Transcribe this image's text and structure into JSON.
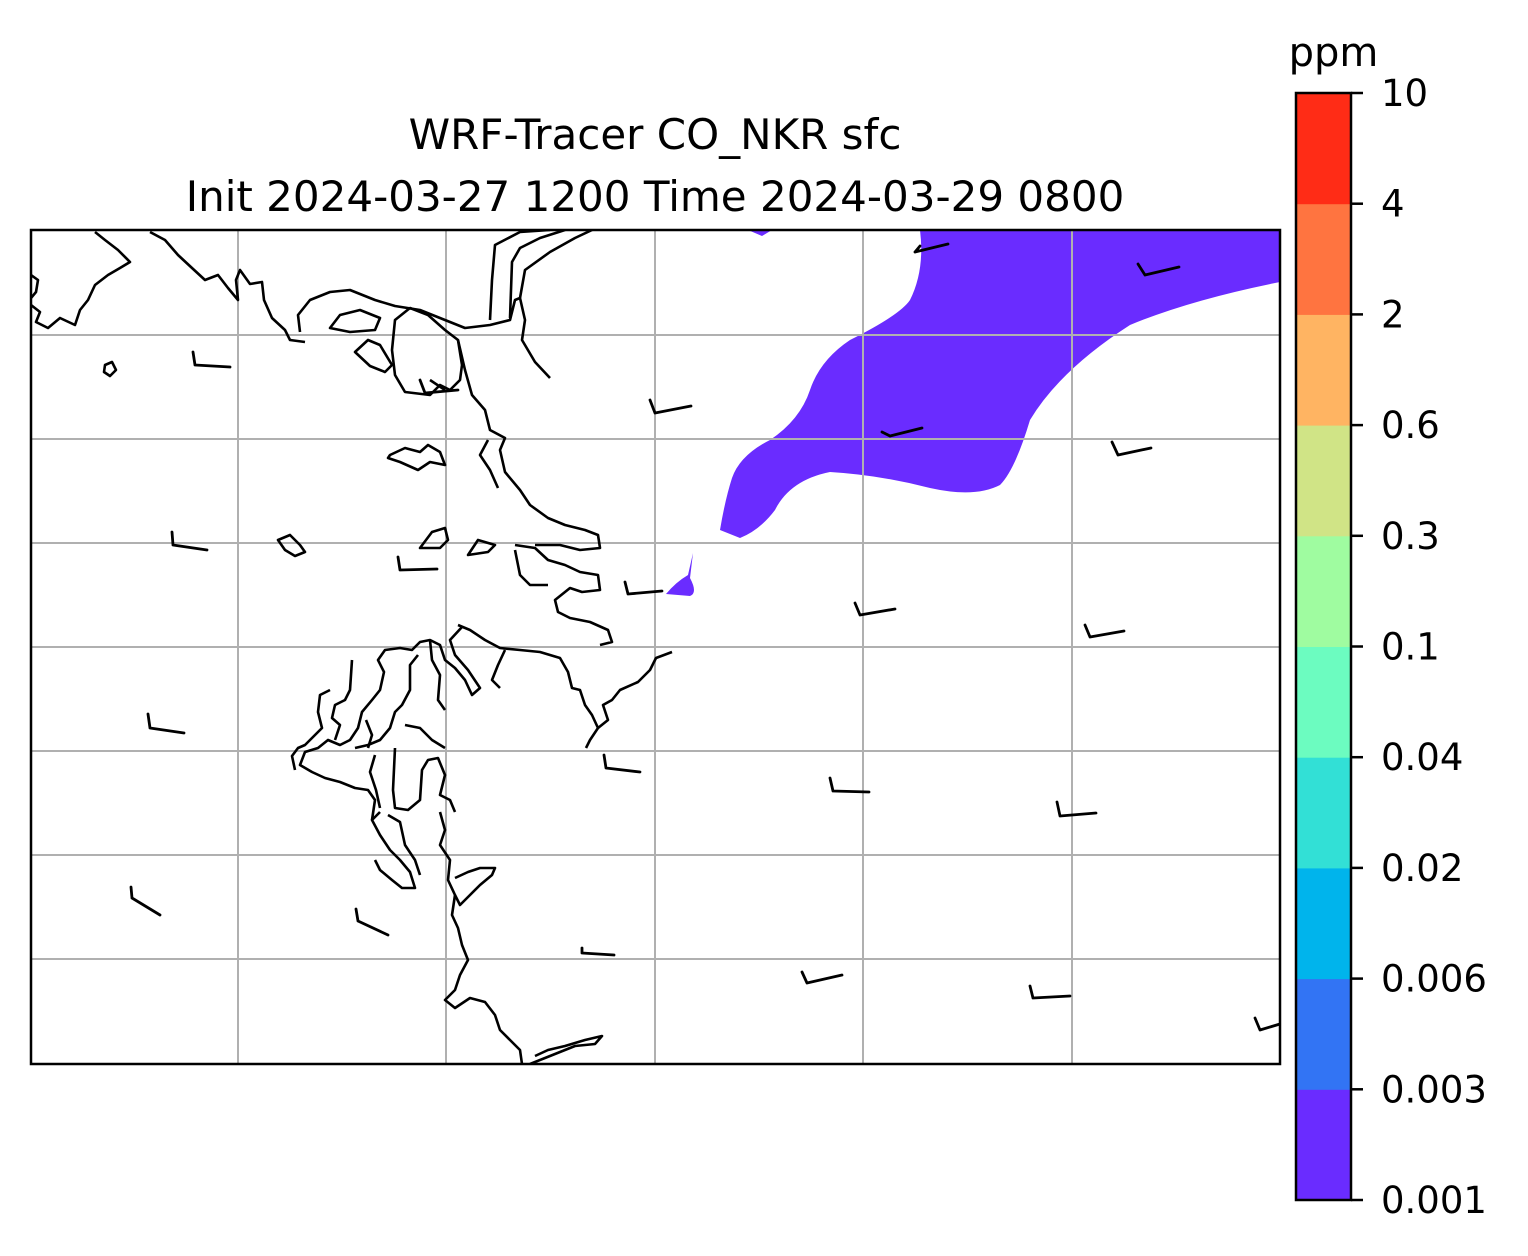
{
  "map": {
    "title_line1": "WRF-Tracer CO_NKR sfc",
    "title_line2": "Init 2024-03-27 1200 Time 2024-03-29 0800"
  },
  "colorbar": {
    "unit": "ppm",
    "levels": [
      "0.001",
      "0.003",
      "0.006",
      "0.02",
      "0.04",
      "0.1",
      "0.3",
      "0.6",
      "2",
      "4",
      "10"
    ],
    "colors": [
      "#6a2cff",
      "#3274f4",
      "#00b4ec",
      "#32e0d6",
      "#6cfcc0",
      "#9ffca0",
      "#d0e486",
      "#ffb462",
      "#ff7440",
      "#ff2c16"
    ]
  },
  "colors": {
    "tracer_fill": "#6a2cff",
    "gridline": "#b0b0b0",
    "coastline": "#000000"
  }
}
